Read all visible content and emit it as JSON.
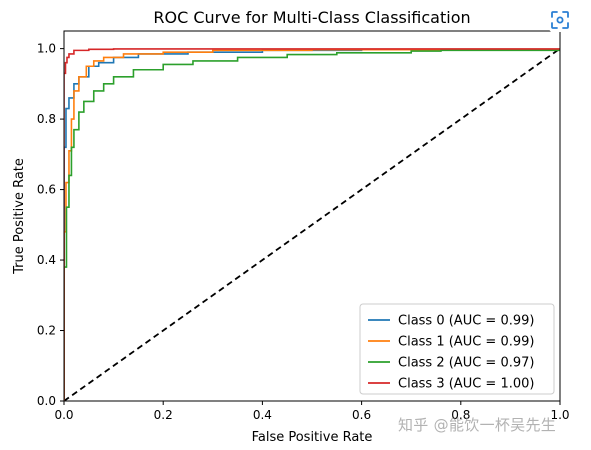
{
  "chart_data": {
    "type": "line",
    "title": "ROC Curve for Multi-Class Classification",
    "xlabel": "False Positive Rate",
    "ylabel": "True Positive Rate",
    "xlim": [
      0.0,
      1.0
    ],
    "ylim": [
      0.0,
      1.05
    ],
    "xticks": [
      "0.0",
      "0.2",
      "0.4",
      "0.6",
      "0.8",
      "1.0"
    ],
    "yticks": [
      "0.0",
      "0.2",
      "0.4",
      "0.6",
      "0.8",
      "1.0"
    ],
    "grid": false,
    "legend_position": "lower-right",
    "series": [
      {
        "name": "Class 0 (AUC = 0.99)",
        "color": "#1f77b4",
        "points": [
          [
            0,
            0
          ],
          [
            0,
            0.72
          ],
          [
            0.004,
            0.83
          ],
          [
            0.01,
            0.86
          ],
          [
            0.02,
            0.9
          ],
          [
            0.03,
            0.92
          ],
          [
            0.05,
            0.95
          ],
          [
            0.07,
            0.96
          ],
          [
            0.1,
            0.975
          ],
          [
            0.15,
            0.985
          ],
          [
            0.25,
            0.99
          ],
          [
            0.4,
            0.995
          ],
          [
            0.6,
            0.997
          ],
          [
            1.0,
            1.0
          ]
        ]
      },
      {
        "name": "Class 1 (AUC = 0.99)",
        "color": "#ff7f0e",
        "points": [
          [
            0,
            0
          ],
          [
            0,
            0.48
          ],
          [
            0.004,
            0.62
          ],
          [
            0.01,
            0.71
          ],
          [
            0.015,
            0.8
          ],
          [
            0.02,
            0.88
          ],
          [
            0.03,
            0.92
          ],
          [
            0.045,
            0.95
          ],
          [
            0.06,
            0.965
          ],
          [
            0.08,
            0.975
          ],
          [
            0.12,
            0.985
          ],
          [
            0.2,
            0.99
          ],
          [
            0.3,
            0.995
          ],
          [
            0.5,
            0.997
          ],
          [
            1.0,
            1.0
          ]
        ]
      },
      {
        "name": "Class 2 (AUC = 0.97)",
        "color": "#2ca02c",
        "points": [
          [
            0,
            0
          ],
          [
            0,
            0.38
          ],
          [
            0.005,
            0.55
          ],
          [
            0.01,
            0.64
          ],
          [
            0.015,
            0.72
          ],
          [
            0.02,
            0.77
          ],
          [
            0.03,
            0.82
          ],
          [
            0.04,
            0.85
          ],
          [
            0.06,
            0.88
          ],
          [
            0.08,
            0.9
          ],
          [
            0.1,
            0.92
          ],
          [
            0.14,
            0.94
          ],
          [
            0.2,
            0.955
          ],
          [
            0.26,
            0.965
          ],
          [
            0.35,
            0.975
          ],
          [
            0.45,
            0.983
          ],
          [
            0.55,
            0.988
          ],
          [
            0.7,
            0.993
          ],
          [
            0.76,
            0.995
          ],
          [
            1.0,
            1.0
          ]
        ]
      },
      {
        "name": "Class 3 (AUC = 1.00)",
        "color": "#d62728",
        "points": [
          [
            0,
            0
          ],
          [
            0,
            0.17
          ],
          [
            0.0,
            0.93
          ],
          [
            0.003,
            0.96
          ],
          [
            0.006,
            0.975
          ],
          [
            0.01,
            0.985
          ],
          [
            0.02,
            0.995
          ],
          [
            0.05,
            0.998
          ],
          [
            0.1,
            0.999
          ],
          [
            1.0,
            1.0
          ]
        ]
      }
    ],
    "reference_line": {
      "color": "#000000",
      "style": "dashed",
      "points": [
        [
          0,
          0
        ],
        [
          1,
          1
        ]
      ]
    }
  },
  "overlay": {
    "watermark": "知乎 @能饮一杯吴先生",
    "corner_button_icon": "scan-icon",
    "accent_color": "#2a7fd4"
  }
}
